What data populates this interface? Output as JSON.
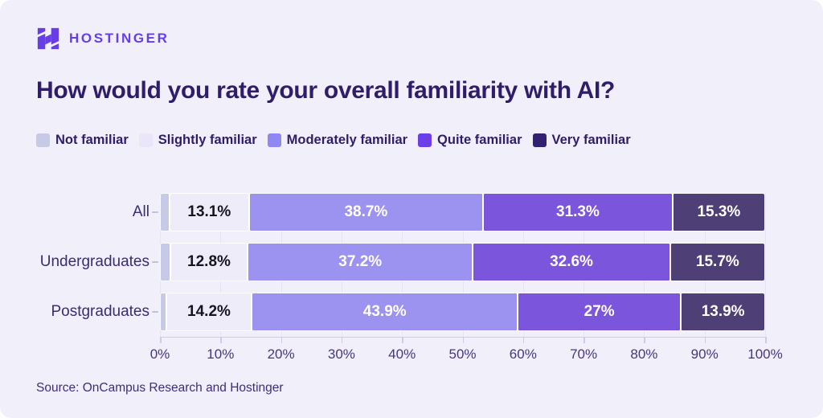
{
  "brand": {
    "name": "HOSTINGER",
    "color": "#673de6",
    "icon": "hostinger-h-logo"
  },
  "title": "How would you rate your overall familiarity with AI?",
  "legend": {
    "items": [
      {
        "label": "Not familiar",
        "color": "#c7cae6"
      },
      {
        "label": "Slightly familiar",
        "color": "#eae5f8"
      },
      {
        "label": "Moderately familiar",
        "color": "#8f87f4"
      },
      {
        "label": "Quite familiar",
        "color": "#6c3ee8"
      },
      {
        "label": "Very familiar",
        "color": "#312074"
      }
    ]
  },
  "chart_data": {
    "type": "bar",
    "orientation": "horizontal",
    "stacked": true,
    "title": "How would you rate your overall familiarity with AI?",
    "categories": [
      "All",
      "Undergraduates",
      "Postgraduates"
    ],
    "series": [
      {
        "name": "Not familiar",
        "color": "#c7cae6",
        "label_color": "#15151e",
        "values": [
          1.6,
          1.7,
          1.0
        ],
        "value_labels": [
          "",
          "",
          ""
        ]
      },
      {
        "name": "Slightly familiar",
        "color": "#efecfa",
        "label_color": "#15151e",
        "values": [
          13.1,
          12.8,
          14.2
        ],
        "value_labels": [
          "13.1%",
          "12.8%",
          "14.2%"
        ]
      },
      {
        "name": "Moderately familiar",
        "color": "#9b93ef",
        "label_color": "#ffffff",
        "values": [
          38.7,
          37.2,
          43.9
        ],
        "value_labels": [
          "38.7%",
          "37.2%",
          "43.9%"
        ]
      },
      {
        "name": "Quite familiar",
        "color": "#7c55dd",
        "label_color": "#ffffff",
        "values": [
          31.3,
          32.6,
          27
        ],
        "value_labels": [
          "31.3%",
          "32.6%",
          "27%"
        ]
      },
      {
        "name": "Very familiar",
        "color": "#4e3f77",
        "label_color": "#ffffff",
        "values": [
          15.3,
          15.7,
          13.9
        ],
        "value_labels": [
          "15.3%",
          "15.7%",
          "13.9%"
        ]
      }
    ],
    "x_ticks": [
      "0%",
      "10%",
      "20%",
      "30%",
      "40%",
      "50%",
      "60%",
      "70%",
      "80%",
      "90%",
      "100%"
    ],
    "xlim": [
      0,
      100
    ],
    "grid": true,
    "legend_position": "top"
  },
  "source": "Source: OnCampus Research and Hostinger",
  "colors": {
    "background": "#f1f0fa",
    "heading_text": "#2f1c6a",
    "row_label_text": "#3a2b74",
    "axis_text": "#46357f",
    "gridline": "#e3e5f4",
    "axis_line": "#c7cfe8",
    "segment_separator": "#ffffff"
  }
}
